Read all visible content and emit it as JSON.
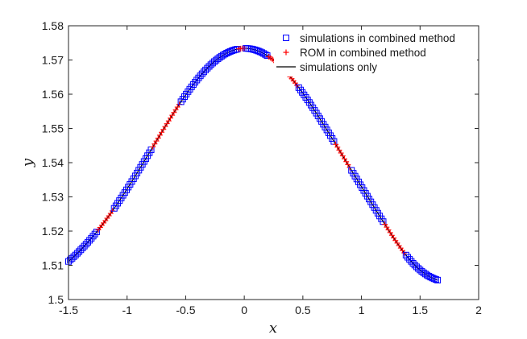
{
  "chart_data": {
    "type": "scatter",
    "title": "",
    "xlabel": "x",
    "ylabel": "y",
    "xlim": [
      -1.5,
      2
    ],
    "ylim": [
      1.5,
      1.58
    ],
    "xticks": [
      -1.5,
      -1,
      -0.5,
      0,
      0.5,
      1,
      1.5,
      2
    ],
    "xtick_labels": [
      "-1.5",
      "-1",
      "-0.5",
      "0",
      "0.5",
      "1",
      "1.5",
      "2"
    ],
    "yticks": [
      1.5,
      1.51,
      1.52,
      1.53,
      1.54,
      1.55,
      1.56,
      1.57,
      1.58
    ],
    "ytick_labels": [
      "1.5",
      "1.51",
      "1.52",
      "1.53",
      "1.54",
      "1.55",
      "1.56",
      "1.57",
      "1.58"
    ],
    "grid": false,
    "legend_position": "top-right",
    "curve_model": {
      "description": "y = 1.5 + 0.0737*exp(-0.8*x^2) - 0.004*exp(-(x-1.5)^2/0.1) + 0.0005*x - 0.0003 (approximate fit of plotted data)",
      "x_min": -1.5,
      "x_max": 1.65,
      "point_spacing": 0.015
    },
    "series": [
      {
        "name": "simulations in combined method",
        "marker": "square",
        "color": "#0000ff",
        "x_ranges": [
          [
            -1.5,
            -1.25
          ],
          [
            -1.12,
            -0.78
          ],
          [
            -0.55,
            -0.05
          ],
          [
            0.0,
            0.2
          ],
          [
            0.45,
            0.78
          ],
          [
            0.9,
            1.2
          ],
          [
            1.37,
            1.65
          ]
        ]
      },
      {
        "name": "ROM in combined method",
        "marker": "plus",
        "color": "#ff0000",
        "x_ranges": [
          [
            -1.25,
            -1.12
          ],
          [
            -0.78,
            -0.55
          ],
          [
            -0.05,
            0.0
          ],
          [
            0.2,
            0.45
          ],
          [
            0.78,
            0.9
          ],
          [
            1.2,
            1.37
          ]
        ]
      },
      {
        "name": "simulations only",
        "marker": "line",
        "color": "#000000",
        "x_ranges": [
          [
            -1.5,
            1.65
          ]
        ]
      }
    ]
  }
}
